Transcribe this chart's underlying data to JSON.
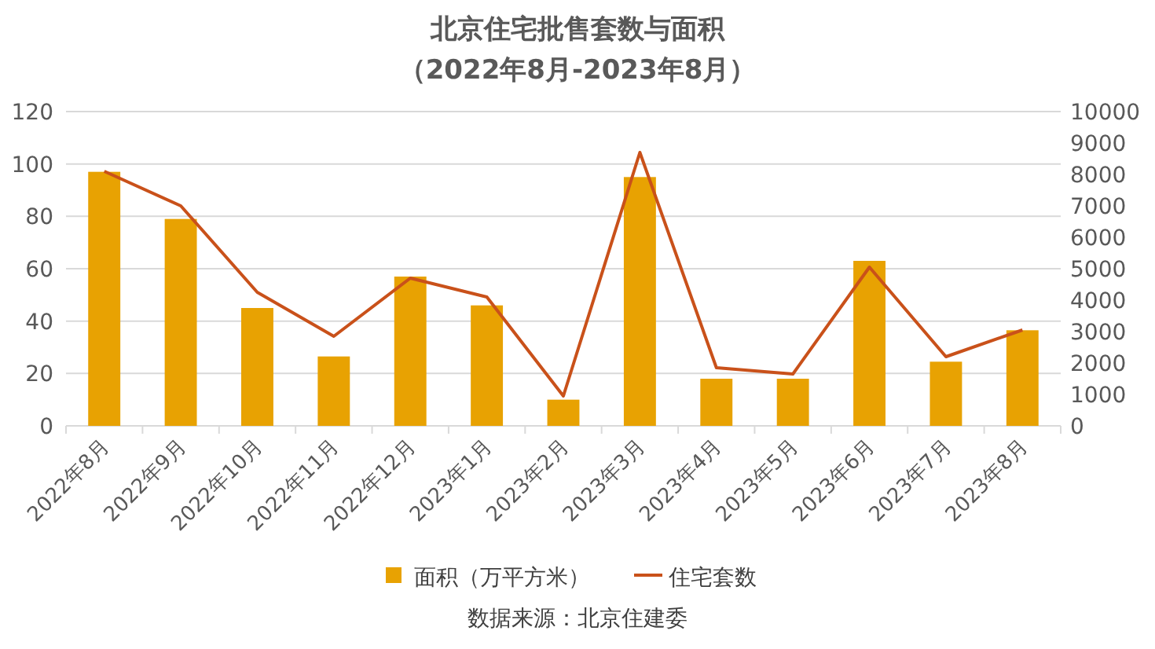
{
  "chart_data": {
    "type": "bar",
    "title": "北京住宅批售套数与面积",
    "subtitle": "（2022年8月-2023年8月）",
    "categories": [
      "2022年8月",
      "2022年9月",
      "2022年10月",
      "2022年11月",
      "2022年12月",
      "2023年1月",
      "2023年2月",
      "2023年3月",
      "2023年4月",
      "2023年5月",
      "2023年6月",
      "2023年7月",
      "2023年8月"
    ],
    "series": [
      {
        "name": "面积（万平方米）",
        "color": "#e8a202",
        "values": [
          97,
          79,
          45,
          26.5,
          57,
          46,
          10,
          95,
          18,
          18,
          63,
          24.5,
          36.5
        ]
      },
      {
        "name": "住宅套数",
        "type": "line",
        "axis": "y2",
        "color": "#c9511a",
        "values": [
          8100,
          7000,
          4250,
          2850,
          4700,
          4100,
          950,
          8700,
          1850,
          1650,
          5050,
          2200,
          3050
        ]
      }
    ],
    "ylim": [
      0,
      120
    ],
    "yticks": [
      0,
      20,
      40,
      60,
      80,
      100,
      120
    ],
    "y2lim": [
      0,
      10000
    ],
    "y2ticks": [
      0,
      1000,
      2000,
      3000,
      4000,
      5000,
      6000,
      7000,
      8000,
      9000,
      10000
    ],
    "grid": "y",
    "legend": "bottom",
    "annotations": [
      "数据来源：北京住建委"
    ]
  }
}
